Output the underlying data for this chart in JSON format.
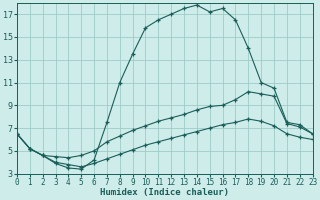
{
  "xlabel": "Humidex (Indice chaleur)",
  "bg_color": "#ceecea",
  "grid_color": "#9eccc8",
  "line_color": "#1a5e59",
  "xlim": [
    0,
    23
  ],
  "ylim": [
    3,
    18
  ],
  "yticks": [
    3,
    5,
    7,
    9,
    11,
    13,
    15,
    17
  ],
  "xticks": [
    0,
    1,
    2,
    3,
    4,
    5,
    6,
    7,
    8,
    9,
    10,
    11,
    12,
    13,
    14,
    15,
    16,
    17,
    18,
    19,
    20,
    21,
    22,
    23
  ],
  "curve_main_x": [
    0,
    1,
    2,
    3,
    4,
    5,
    6,
    7,
    8,
    9,
    10,
    11,
    12,
    13,
    14,
    15,
    16,
    17,
    18,
    19,
    20,
    21,
    22,
    23
  ],
  "curve_main_y": [
    6.5,
    5.2,
    4.6,
    3.9,
    3.5,
    3.4,
    4.2,
    7.5,
    11.0,
    13.5,
    15.8,
    16.5,
    17.0,
    17.5,
    17.8,
    17.2,
    17.5,
    16.5,
    14.0,
    11.0,
    10.5,
    7.5,
    7.3,
    6.5
  ],
  "curve_upper_x": [
    0,
    1,
    2,
    3,
    4,
    5,
    6,
    7,
    8,
    9,
    10,
    11,
    12,
    13,
    14,
    15,
    16,
    17,
    18,
    19,
    20,
    21,
    22,
    23
  ],
  "curve_upper_y": [
    6.5,
    5.2,
    4.6,
    4.5,
    4.4,
    4.6,
    5.0,
    5.8,
    6.3,
    6.8,
    7.2,
    7.6,
    7.9,
    8.2,
    8.6,
    8.9,
    9.0,
    9.5,
    10.2,
    10.0,
    9.8,
    7.4,
    7.1,
    6.5
  ],
  "curve_lower_x": [
    0,
    1,
    2,
    3,
    4,
    5,
    6,
    7,
    8,
    9,
    10,
    11,
    12,
    13,
    14,
    15,
    16,
    17,
    18,
    19,
    20,
    21,
    22,
    23
  ],
  "curve_lower_y": [
    6.5,
    5.2,
    4.6,
    4.0,
    3.8,
    3.6,
    3.9,
    4.3,
    4.7,
    5.1,
    5.5,
    5.8,
    6.1,
    6.4,
    6.7,
    7.0,
    7.3,
    7.5,
    7.8,
    7.6,
    7.2,
    6.5,
    6.2,
    6.0
  ]
}
